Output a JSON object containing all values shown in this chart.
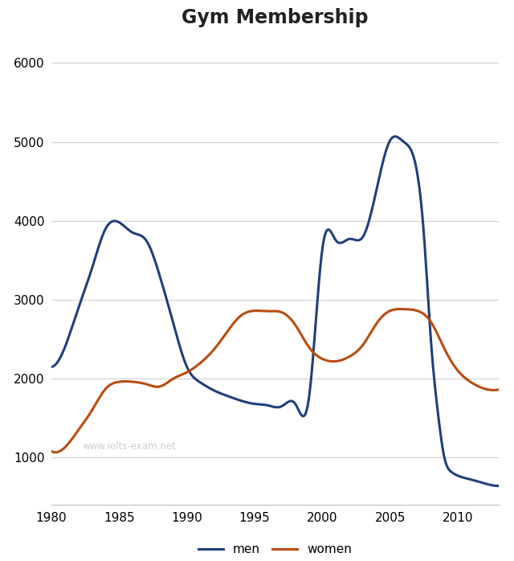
{
  "title": "Gym Membership",
  "title_fontsize": 17,
  "title_fontweight": "bold",
  "xlim": [
    1980,
    2013
  ],
  "ylim": [
    400,
    6300
  ],
  "yticks": [
    1000,
    2000,
    3000,
    4000,
    5000,
    6000
  ],
  "xticks": [
    1980,
    1985,
    1990,
    1995,
    2000,
    2005,
    2010
  ],
  "background_color": "#ffffff",
  "grid_color": "#d0d0d0",
  "watermark": "www.ielts-exam.net",
  "men_color": "#1f3f7a",
  "women_color": "#b84c10",
  "men_x": [
    1980,
    1981,
    1982,
    1983,
    1984,
    1985,
    1986,
    1987,
    1988,
    1989,
    1990,
    1991,
    1992,
    1993,
    1994,
    1995,
    1996,
    1997,
    1998,
    1999,
    2000,
    2001,
    2002,
    2003,
    2004,
    2005,
    2006,
    2007,
    2007.5,
    2008,
    2008.5,
    2009,
    2009.5,
    2010,
    2011,
    2012,
    2013
  ],
  "men_y": [
    2150,
    2400,
    2900,
    3400,
    3900,
    3980,
    3850,
    3750,
    3300,
    2700,
    2150,
    1950,
    1850,
    1780,
    1720,
    1680,
    1660,
    1650,
    1680,
    1750,
    3650,
    3750,
    3770,
    3800,
    4400,
    5020,
    5000,
    4600,
    3800,
    2500,
    1600,
    1000,
    820,
    770,
    720,
    670,
    640
  ],
  "women_x": [
    1980,
    1981,
    1982,
    1983,
    1984,
    1985,
    1986,
    1987,
    1988,
    1989,
    1990,
    1991,
    1992,
    1993,
    1994,
    1995,
    1996,
    1997,
    1998,
    1999,
    2000,
    2001,
    2002,
    2003,
    2004,
    2005,
    2006,
    2007,
    2008,
    2009,
    2010,
    2011,
    2012,
    2013
  ],
  "women_y": [
    1080,
    1130,
    1350,
    1600,
    1870,
    1960,
    1960,
    1930,
    1900,
    2000,
    2080,
    2200,
    2370,
    2600,
    2800,
    2860,
    2855,
    2840,
    2680,
    2400,
    2250,
    2220,
    2280,
    2430,
    2700,
    2860,
    2880,
    2860,
    2720,
    2380,
    2100,
    1950,
    1870,
    1860
  ],
  "line_width": 2.2,
  "legend_fontsize": 11,
  "tick_labelsize": 11
}
